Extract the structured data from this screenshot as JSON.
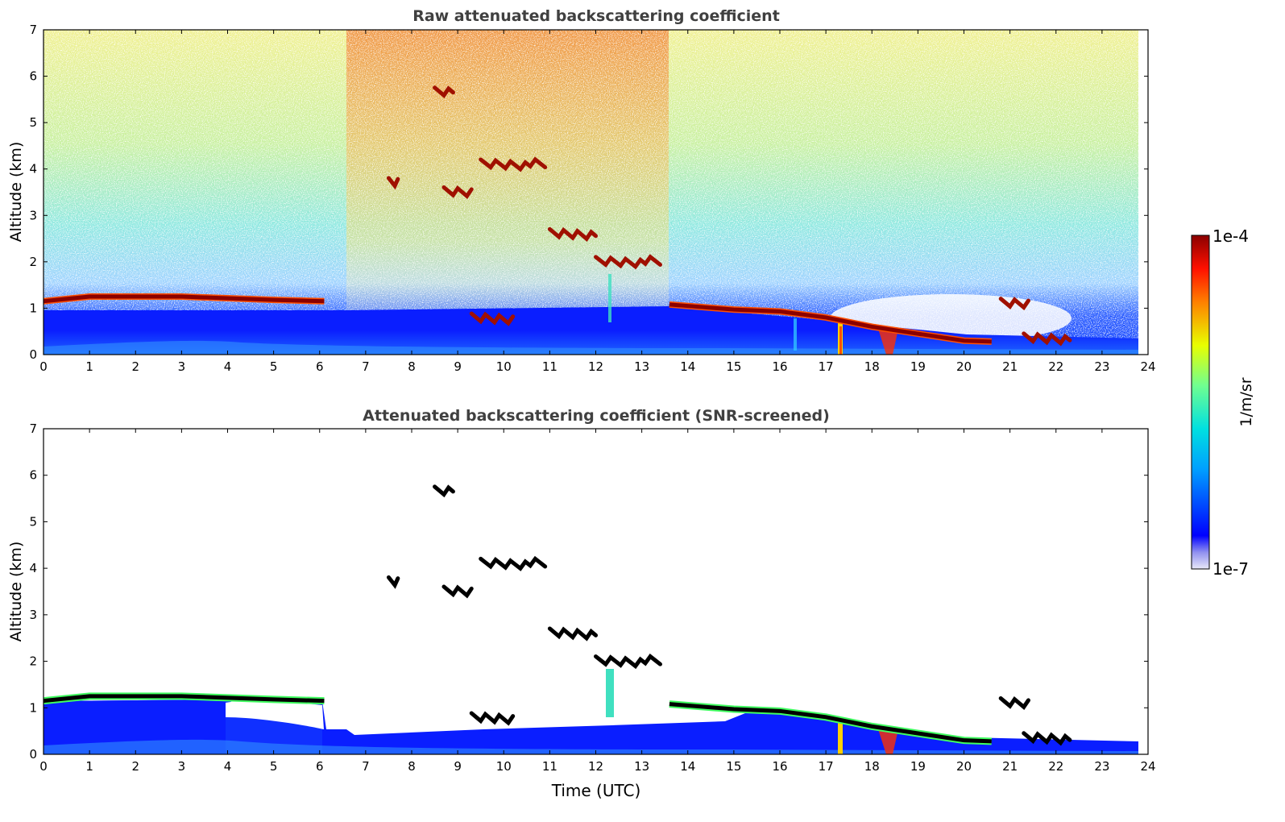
{
  "chart_data": [
    {
      "type": "heatmap",
      "title": "Raw attenuated backscattering coefficient",
      "xlabel": "",
      "ylabel": "Altitude (km)",
      "xlim": [
        0,
        24
      ],
      "ylim": [
        0,
        7
      ],
      "xticks": [
        "0",
        "1",
        "2",
        "3",
        "4",
        "5",
        "6",
        "7",
        "8",
        "9",
        "10",
        "11",
        "12",
        "13",
        "14",
        "15",
        "16",
        "17",
        "18",
        "19",
        "20",
        "21",
        "22",
        "23",
        "24"
      ],
      "yticks": [
        "0",
        "1",
        "2",
        "3",
        "4",
        "5",
        "6",
        "7"
      ],
      "screened": false,
      "cloud_base_layer": [
        {
          "t": 0.0,
          "alt": 1.15
        },
        {
          "t": 1.0,
          "alt": 1.25
        },
        {
          "t": 3.0,
          "alt": 1.25
        },
        {
          "t": 5.0,
          "alt": 1.18
        },
        {
          "t": 6.1,
          "alt": 1.15
        },
        {
          "t": 13.6,
          "alt": 1.08
        },
        {
          "t": 15.0,
          "alt": 0.97
        },
        {
          "t": 16.0,
          "alt": 0.93
        },
        {
          "t": 17.0,
          "alt": 0.8
        },
        {
          "t": 18.0,
          "alt": 0.6
        },
        {
          "t": 19.0,
          "alt": 0.45
        },
        {
          "t": 20.0,
          "alt": 0.3
        },
        {
          "t": 20.6,
          "alt": 0.28
        }
      ],
      "elevated_cloud_fragments": [
        {
          "t0": 7.5,
          "t1": 7.7,
          "alt": 3.7
        },
        {
          "t0": 8.5,
          "t1": 8.9,
          "alt": 5.65
        },
        {
          "t0": 8.7,
          "t1": 9.3,
          "alt": 3.5
        },
        {
          "t0": 9.3,
          "t1": 10.2,
          "alt": 0.78
        },
        {
          "t0": 9.5,
          "t1": 10.9,
          "alt": 4.1
        },
        {
          "t0": 11.0,
          "t1": 12.0,
          "alt": 2.6
        },
        {
          "t0": 12.0,
          "t1": 13.4,
          "alt": 2.0
        },
        {
          "t0": 20.8,
          "t1": 21.4,
          "alt": 1.1
        },
        {
          "t0": 21.3,
          "t1": 22.3,
          "alt": 0.35
        }
      ]
    },
    {
      "type": "heatmap",
      "title": "Attenuated backscattering coefficient (SNR-screened)",
      "xlabel": "Time (UTC)",
      "ylabel": "Altitude (km)",
      "xlim": [
        0,
        24
      ],
      "ylim": [
        0,
        7
      ],
      "xticks": [
        "0",
        "1",
        "2",
        "3",
        "4",
        "5",
        "6",
        "7",
        "8",
        "9",
        "10",
        "11",
        "12",
        "13",
        "14",
        "15",
        "16",
        "17",
        "18",
        "19",
        "20",
        "21",
        "22",
        "23",
        "24"
      ],
      "yticks": [
        "0",
        "1",
        "2",
        "3",
        "4",
        "5",
        "6",
        "7"
      ],
      "screened": true
    }
  ],
  "colorbar": {
    "min_label": "1e-7",
    "max_label": "1e-4",
    "unit": "1/m/sr",
    "colormap": "jet",
    "colors": [
      "#e8e8f8",
      "#0000ff",
      "#00a0ff",
      "#00e0e0",
      "#a0ff60",
      "#ffe000",
      "#ff6000",
      "#a00000"
    ]
  }
}
